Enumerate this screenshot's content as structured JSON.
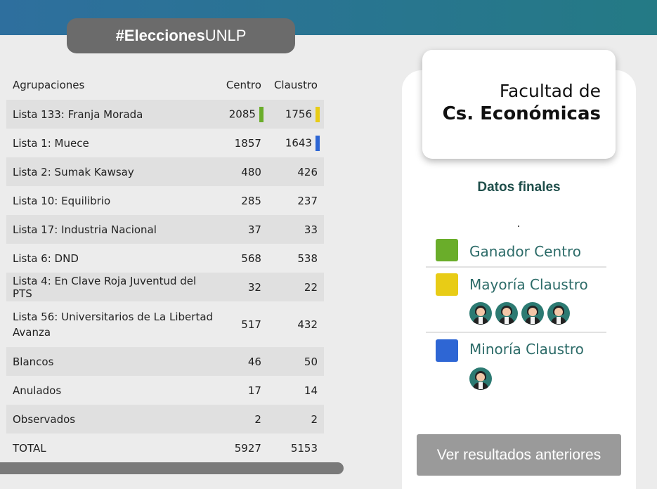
{
  "header": {
    "hashtag_bold": "#Elecciones",
    "hashtag_rest": "UNLP"
  },
  "table": {
    "headers": [
      "Agrupaciones",
      "Centro",
      "Claustro"
    ],
    "rows": [
      {
        "name": "Lista 133: Franja Morada",
        "centro": "2085",
        "claustro": "1756",
        "centro_marker": "green",
        "claustro_marker": "yellow"
      },
      {
        "name": "Lista 1: Muece",
        "centro": "1857",
        "claustro": "1643",
        "claustro_marker": "blue"
      },
      {
        "name": "Lista 2: Sumak Kawsay",
        "centro": "480",
        "claustro": "426"
      },
      {
        "name": "Lista 10: Equilibrio",
        "centro": "285",
        "claustro": "237"
      },
      {
        "name": "Lista 17: Industria Nacional",
        "centro": "37",
        "claustro": "33"
      },
      {
        "name": "Lista 6: DND",
        "centro": "568",
        "claustro": "538"
      },
      {
        "name": "Lista 4: En Clave Roja Juventud del PTS",
        "centro": "32",
        "claustro": "22"
      },
      {
        "name": "Lista 56: Universitarios de La Libertad Avanza",
        "centro": "517",
        "claustro": "432"
      },
      {
        "name": "Blancos",
        "centro": "46",
        "claustro": "50"
      },
      {
        "name": "Anulados",
        "centro": "17",
        "claustro": "14"
      },
      {
        "name": "Observados",
        "centro": "2",
        "claustro": "2"
      },
      {
        "name": "TOTAL",
        "centro": "5927",
        "claustro": "5153"
      }
    ]
  },
  "faculty": {
    "line1": "Facultad de",
    "line2": "Cs. Económicas"
  },
  "panel": {
    "subtitle": "Datos finales",
    "legend": [
      {
        "label": "Ganador Centro",
        "color": "#6aad2a",
        "seats": 0
      },
      {
        "label": "Mayoría Claustro",
        "color": "#e8cc16",
        "seats": 4
      },
      {
        "label": "Minoría Claustro",
        "color": "#2e66d4",
        "seats": 1
      }
    ],
    "button_label": "Ver resultados anteriores"
  },
  "colors": {
    "green": "#6aad2a",
    "yellow": "#e8cc16",
    "blue": "#2e66d4",
    "accent_text": "#2c6b68"
  }
}
